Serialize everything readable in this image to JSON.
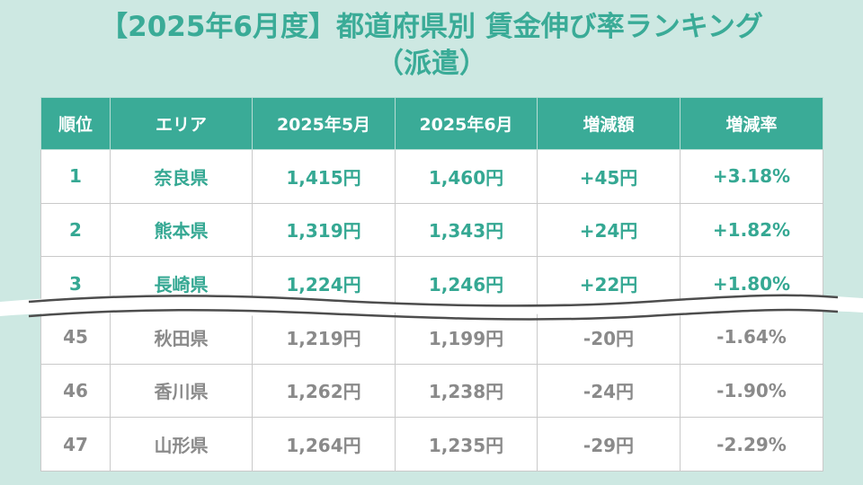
{
  "title": {
    "line1": "【2025年6月度】都道府県別 賃金伸び率ランキング",
    "line2": "（派遣）"
  },
  "table": {
    "headers": [
      "順位",
      "エリア",
      "2025年5月",
      "2025年6月",
      "増減額",
      "増減率"
    ],
    "top_rows": [
      [
        "1",
        "奈良県",
        "1,415円",
        "1,460円",
        "+45円",
        "+3.18%"
      ],
      [
        "2",
        "熊本県",
        "1,319円",
        "1,343円",
        "+24円",
        "+1.82%"
      ],
      [
        "3",
        "長崎県",
        "1,224円",
        "1,246円",
        "+22円",
        "+1.80%"
      ]
    ],
    "bottom_rows": [
      [
        "45",
        "秋田県",
        "1,219円",
        "1,199円",
        "-20円",
        "-1.64%"
      ],
      [
        "46",
        "香川県",
        "1,262円",
        "1,238円",
        "-24円",
        "-1.90%"
      ],
      [
        "47",
        "山形県",
        "1,264円",
        "1,235円",
        "-29円",
        "-2.29%"
      ]
    ]
  },
  "colors": {
    "accent": "#3aab97",
    "background": "#cde8e2",
    "top_text": "#35a893",
    "bottom_text": "#8a8a8a"
  }
}
